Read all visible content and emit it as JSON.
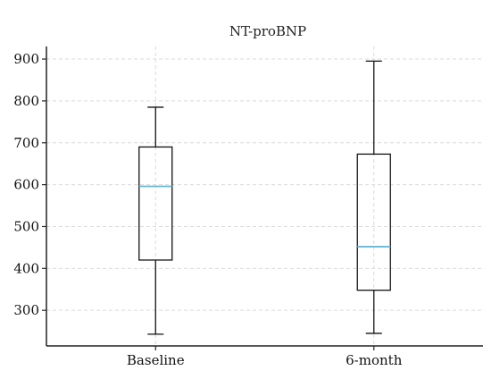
{
  "chart_data": {
    "type": "box",
    "title": "NT-proBNP",
    "xlabel": "",
    "ylabel": "",
    "ylim": [
      215,
      930
    ],
    "yticks": [
      300,
      400,
      500,
      600,
      700,
      800,
      900
    ],
    "grid": true,
    "median_color": "#6ab8d8",
    "box_color": "#111111",
    "categories": [
      "Baseline",
      "6-month"
    ],
    "boxes": [
      {
        "label": "Baseline",
        "whisker_low": 243,
        "q1": 420,
        "median": 596,
        "q3": 690,
        "whisker_high": 785
      },
      {
        "label": "6-month",
        "whisker_low": 245,
        "q1": 348,
        "median": 452,
        "q3": 673,
        "whisker_high": 895
      }
    ]
  }
}
